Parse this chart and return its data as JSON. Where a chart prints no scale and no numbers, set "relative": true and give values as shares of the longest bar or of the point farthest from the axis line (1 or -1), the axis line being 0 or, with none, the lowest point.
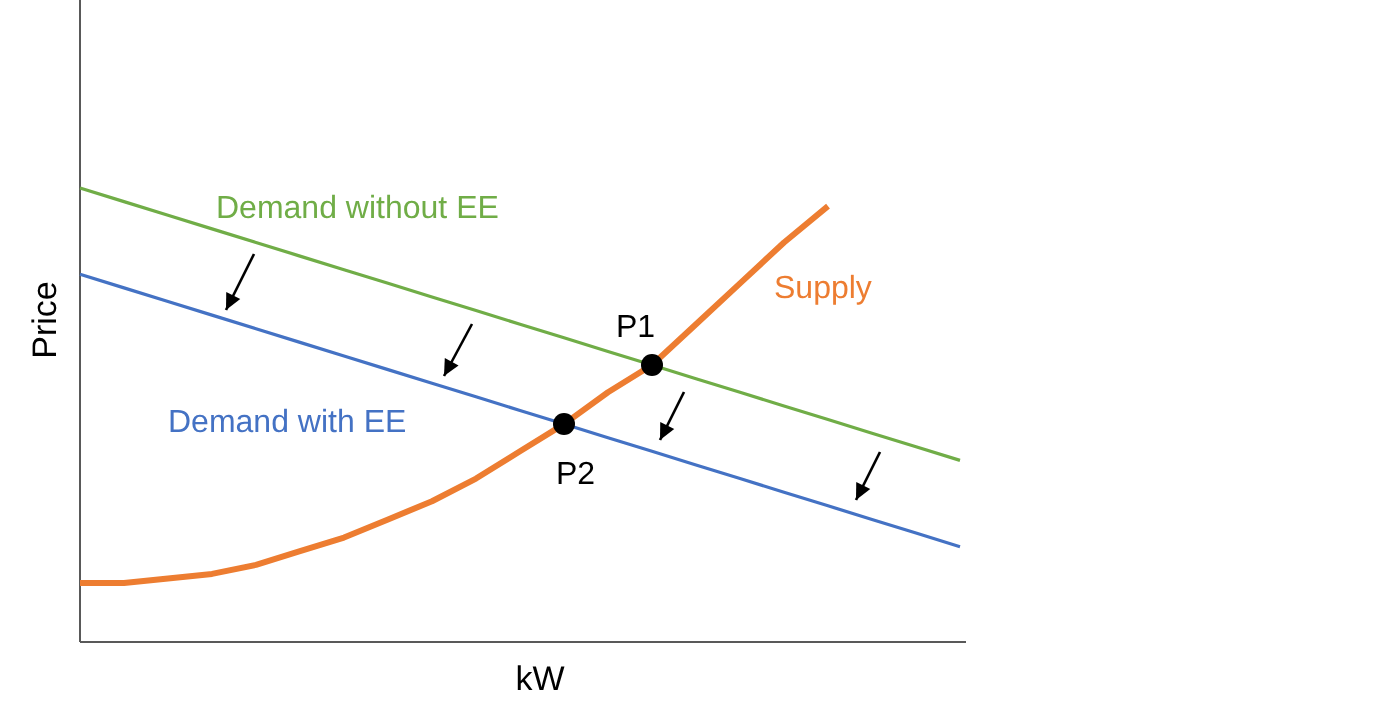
{
  "chart_data": {
    "type": "line",
    "relative": true,
    "xlabel": "kW",
    "ylabel": "Price",
    "categories": [
      null,
      null,
      null,
      null,
      null,
      null,
      null,
      null,
      null,
      null,
      null,
      null,
      null,
      null,
      null,
      null,
      null,
      null,
      null,
      null,
      null
    ],
    "series": [
      {
        "name": "Demand without EE",
        "color": "#70ad47",
        "marker": "none",
        "values": [
          1.0,
          0.97,
          0.94,
          0.91,
          0.88,
          0.85,
          0.82,
          0.79,
          0.76,
          0.73,
          0.7,
          0.67,
          0.64,
          0.61,
          0.58,
          0.55,
          0.52,
          0.49,
          0.46,
          0.43,
          0.4
        ]
      },
      {
        "name": "Demand with EE",
        "color": "#4472c4",
        "marker": "none",
        "values": [
          0.81,
          0.78,
          0.75,
          0.72,
          0.69,
          0.66,
          0.63,
          0.6,
          0.57,
          0.54,
          0.51,
          0.48,
          0.45,
          0.42,
          0.39,
          0.36,
          0.33,
          0.3,
          0.27,
          0.24,
          0.21
        ]
      },
      {
        "name": "Supply",
        "color": "#ed7d31",
        "marker": "none",
        "values": [
          0.13,
          0.13,
          0.14,
          0.15,
          0.17,
          0.2,
          0.23,
          0.27,
          0.31,
          0.36,
          0.42,
          0.48,
          0.55,
          0.61,
          0.7,
          0.79,
          0.88,
          0.96,
          null,
          null,
          null
        ]
      },
      {
        "name": "P1",
        "color": "#000000",
        "marker": "circle",
        "values": [
          null,
          null,
          null,
          null,
          null,
          null,
          null,
          null,
          null,
          null,
          null,
          null,
          null,
          0.61,
          null,
          null,
          null,
          null,
          null,
          null,
          null
        ]
      },
      {
        "name": "P2",
        "color": "#000000",
        "marker": "circle",
        "values": [
          null,
          null,
          null,
          null,
          null,
          null,
          null,
          null,
          null,
          null,
          null,
          0.48,
          null,
          null,
          null,
          null,
          null,
          null,
          null,
          null,
          null
        ]
      }
    ]
  }
}
